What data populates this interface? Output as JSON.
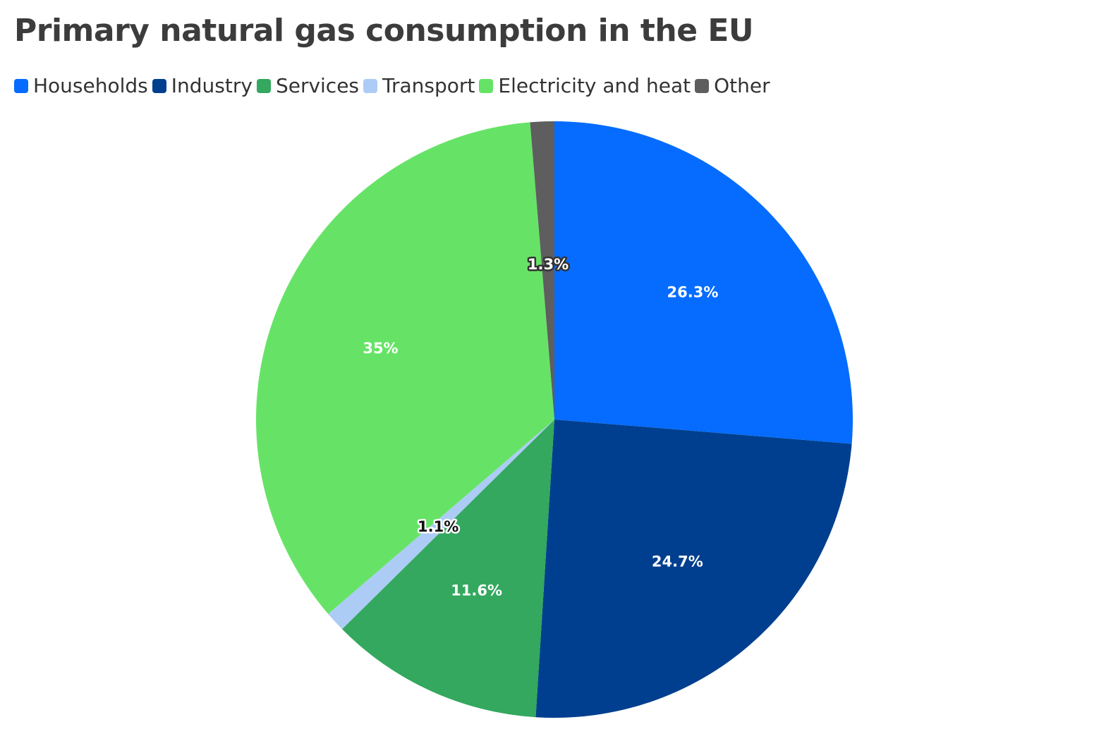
{
  "chart_data": {
    "type": "pie",
    "title": "Primary natural gas consumption in the EU",
    "legend_position": "top-left",
    "unit": "%",
    "slices": [
      {
        "label": "Households",
        "value": 26.3,
        "display": "26.3%",
        "color": "#056cff",
        "text_color": "#ffffff",
        "halo_color": ""
      },
      {
        "label": "Industry",
        "value": 24.7,
        "display": "24.7%",
        "color": "#003f8f",
        "text_color": "#ffffff",
        "halo_color": ""
      },
      {
        "label": "Services",
        "value": 11.6,
        "display": "11.6%",
        "color": "#33a85e",
        "text_color": "#ffffff",
        "halo_color": ""
      },
      {
        "label": "Transport",
        "value": 1.1,
        "display": "1.1%",
        "color": "#acccf6",
        "text_color": "#111111",
        "halo_color": "#ffffff"
      },
      {
        "label": "Electricity and heat",
        "value": 35,
        "display": "35%",
        "color": "#66e366",
        "text_color": "#ffffff",
        "halo_color": ""
      },
      {
        "label": "Other",
        "value": 1.3,
        "display": "1.3%",
        "color": "#5e5e5e",
        "text_color": "#ffffff",
        "halo_color": "#333333"
      }
    ]
  }
}
